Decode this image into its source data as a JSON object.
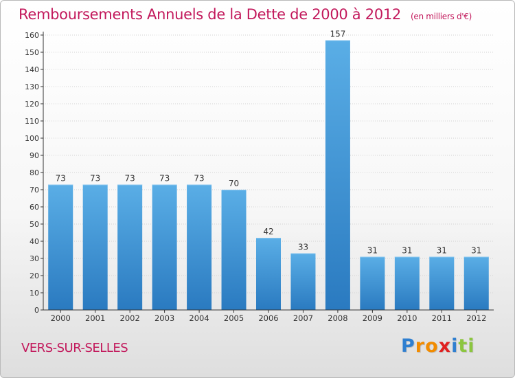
{
  "chart_data": {
    "type": "bar",
    "title": "Remboursements Annuels de la Dette de 2000 à 2012",
    "unit_label": "(en milliers d'€)",
    "categories": [
      "2000",
      "2001",
      "2002",
      "2003",
      "2004",
      "2005",
      "2006",
      "2007",
      "2008",
      "2009",
      "2010",
      "2011",
      "2012"
    ],
    "values": [
      73,
      73,
      73,
      73,
      73,
      70,
      42,
      33,
      157,
      31,
      31,
      31,
      31
    ],
    "ylim": [
      0,
      160
    ],
    "y_ticks": [
      0,
      10,
      20,
      30,
      40,
      50,
      60,
      70,
      80,
      90,
      100,
      110,
      120,
      130,
      140,
      150,
      160
    ],
    "grid": true,
    "xlabel": "",
    "ylabel": ""
  },
  "colors": {
    "title": "#c2185b",
    "bar_top": "#5aaee6",
    "bar_bottom": "#2a7ac0",
    "grid": "#d3d3d3",
    "axis": "#333333"
  },
  "commune": "VERS-SUR-SELLES",
  "logo": {
    "letters": [
      "P",
      "r",
      "o",
      "x",
      "i",
      "t",
      "i"
    ],
    "colors": [
      "#2f7fd0",
      "#f28c00",
      "#f28c00",
      "#e02020",
      "#2f7fd0",
      "#8cc63f",
      "#8cc63f"
    ]
  }
}
